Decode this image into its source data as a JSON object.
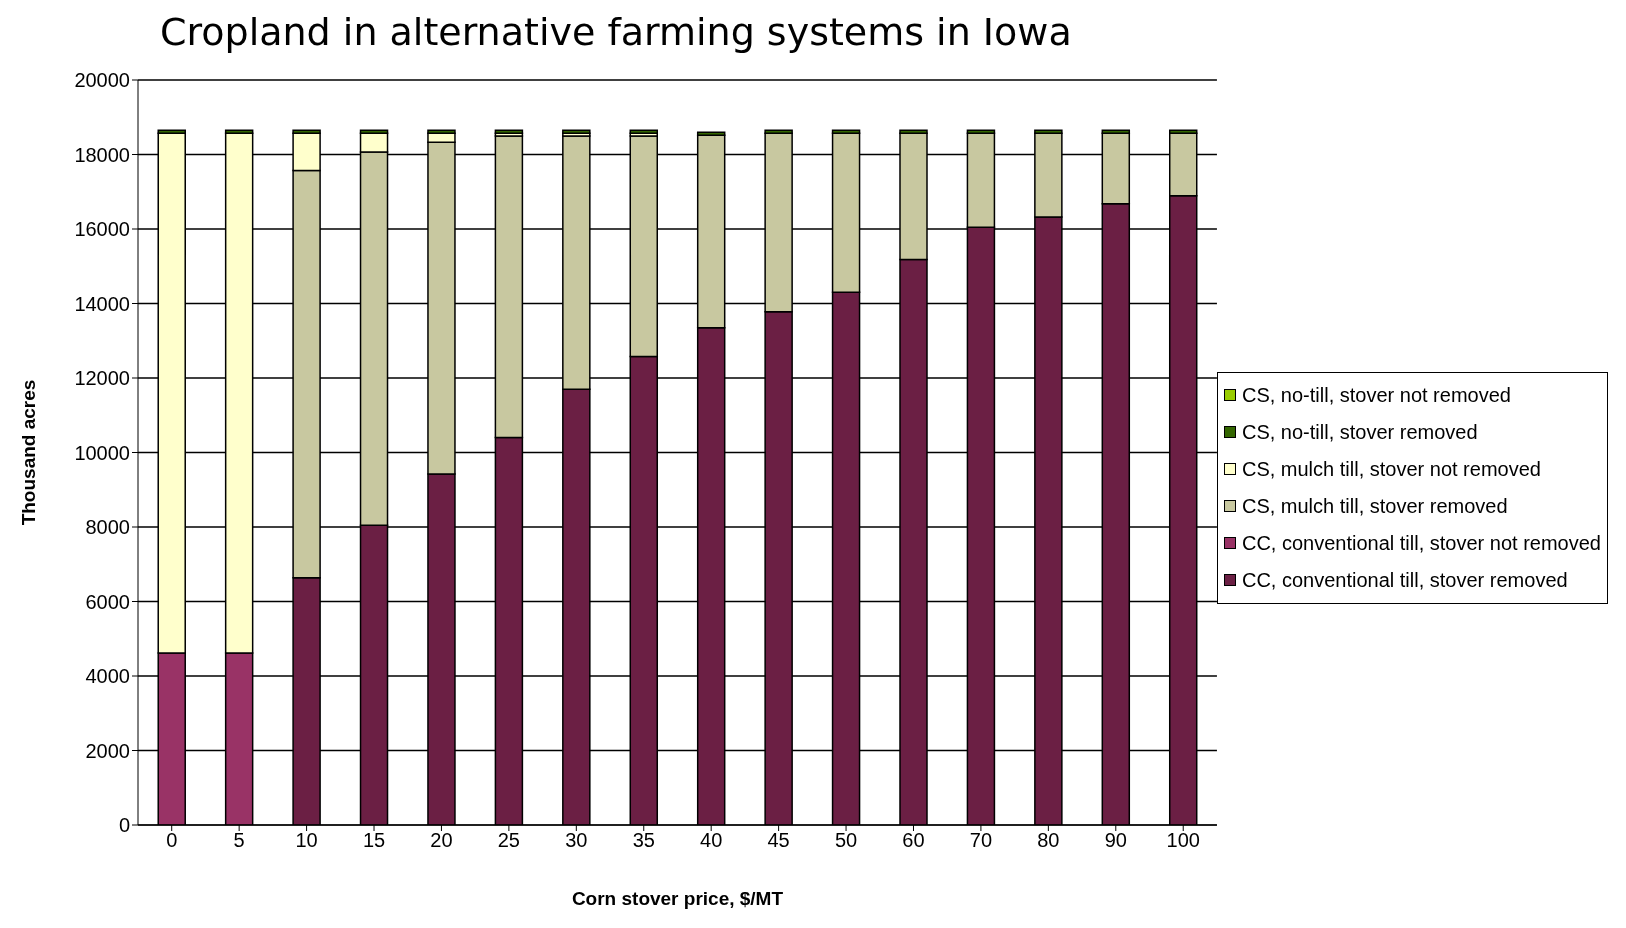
{
  "chart_data": {
    "type": "bar",
    "title": "Cropland  in alternative farming systems in Iowa",
    "xlabel": "Corn stover price, $/MT",
    "ylabel": "Thousand acres",
    "categories": [
      "0",
      "5",
      "10",
      "15",
      "20",
      "25",
      "30",
      "35",
      "40",
      "45",
      "50",
      "60",
      "70",
      "80",
      "90",
      "100"
    ],
    "stacked": true,
    "ylim": [
      0,
      20000
    ],
    "yticks": [
      0,
      2000,
      4000,
      6000,
      8000,
      10000,
      12000,
      14000,
      16000,
      18000,
      20000
    ],
    "grid": "y",
    "legend": "right",
    "series": [
      {
        "name": "CC, conventional till, stover removed",
        "color": "#6b1f44",
        "values": [
          0,
          0,
          6640,
          8050,
          9420,
          10400,
          11700,
          12580,
          13350,
          13780,
          14300,
          15180,
          16050,
          16320,
          16680,
          16890
        ]
      },
      {
        "name": "CC, conventional till, stover not removed",
        "color": "#993366",
        "values": [
          4620,
          4620,
          0,
          0,
          0,
          0,
          0,
          0,
          0,
          0,
          0,
          0,
          0,
          0,
          0,
          0
        ]
      },
      {
        "name": "CS, mulch till, stover removed",
        "color": "#c8c8a0",
        "values": [
          0,
          0,
          10930,
          10020,
          8910,
          8100,
          6800,
          5920,
          5170,
          4790,
          4270,
          3390,
          2520,
          2250,
          1890,
          1680
        ]
      },
      {
        "name": "CS, mulch till, stover not removed",
        "color": "#ffffcc",
        "values": [
          13950,
          13950,
          1000,
          500,
          240,
          70,
          70,
          70,
          0,
          0,
          0,
          0,
          0,
          0,
          0,
          0
        ]
      },
      {
        "name": "CS, no-till, stover removed",
        "color": "#336600",
        "values": [
          80,
          80,
          80,
          80,
          80,
          80,
          80,
          80,
          80,
          80,
          80,
          80,
          80,
          80,
          80,
          80
        ]
      },
      {
        "name": "CS, no-till, stover not removed",
        "color": "#99cc00",
        "values": [
          0,
          0,
          0,
          0,
          0,
          0,
          0,
          0,
          0,
          0,
          0,
          0,
          0,
          0,
          0,
          0
        ]
      }
    ]
  }
}
